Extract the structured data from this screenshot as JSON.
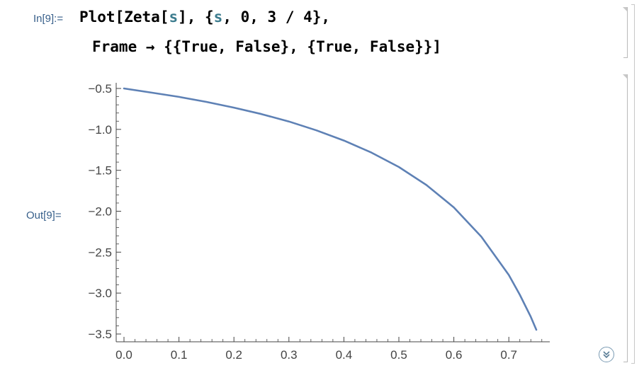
{
  "input": {
    "label": "In[9]:=",
    "line1_parts": [
      "Plot[Zeta[",
      "s",
      "], {",
      "s",
      ", 0, 3 / 4},"
    ],
    "line2": "Frame → {{True, False}, {True, False}}]"
  },
  "output": {
    "label": "Out[9]="
  },
  "colors": {
    "label": "#375f8a",
    "symbol": "#3c7c8e",
    "curve": "#5e81b5",
    "axis": "#444444"
  },
  "icons": {
    "more_button": "double-chevron-down-icon"
  },
  "chart_data": {
    "type": "line",
    "function": "Zeta[s]",
    "x": [
      0.0,
      0.05,
      0.1,
      0.15,
      0.2,
      0.25,
      0.3,
      0.35,
      0.4,
      0.45,
      0.5,
      0.55,
      0.6,
      0.65,
      0.7,
      0.72,
      0.74,
      0.75
    ],
    "y": [
      -0.5,
      -0.551,
      -0.603,
      -0.664,
      -0.734,
      -0.813,
      -0.904,
      -1.012,
      -1.136,
      -1.283,
      -1.46,
      -1.679,
      -1.953,
      -2.311,
      -2.779,
      -3.02,
      -3.29,
      -3.448
    ],
    "xlim": [
      0.0,
      0.75
    ],
    "ylim": [
      -3.5,
      -0.5
    ],
    "xticks": [
      "0.0",
      "0.1",
      "0.2",
      "0.3",
      "0.4",
      "0.5",
      "0.6",
      "0.7"
    ],
    "xtick_values": [
      0.0,
      0.1,
      0.2,
      0.3,
      0.4,
      0.5,
      0.6,
      0.7
    ],
    "yticks": [
      "−0.5",
      "−1.0",
      "−1.5",
      "−2.0",
      "−2.5",
      "−3.0",
      "−3.5"
    ],
    "ytick_values": [
      -0.5,
      -1.0,
      -1.5,
      -2.0,
      -2.5,
      -3.0,
      -3.5
    ],
    "frame": "left-bottom",
    "grid": false
  }
}
